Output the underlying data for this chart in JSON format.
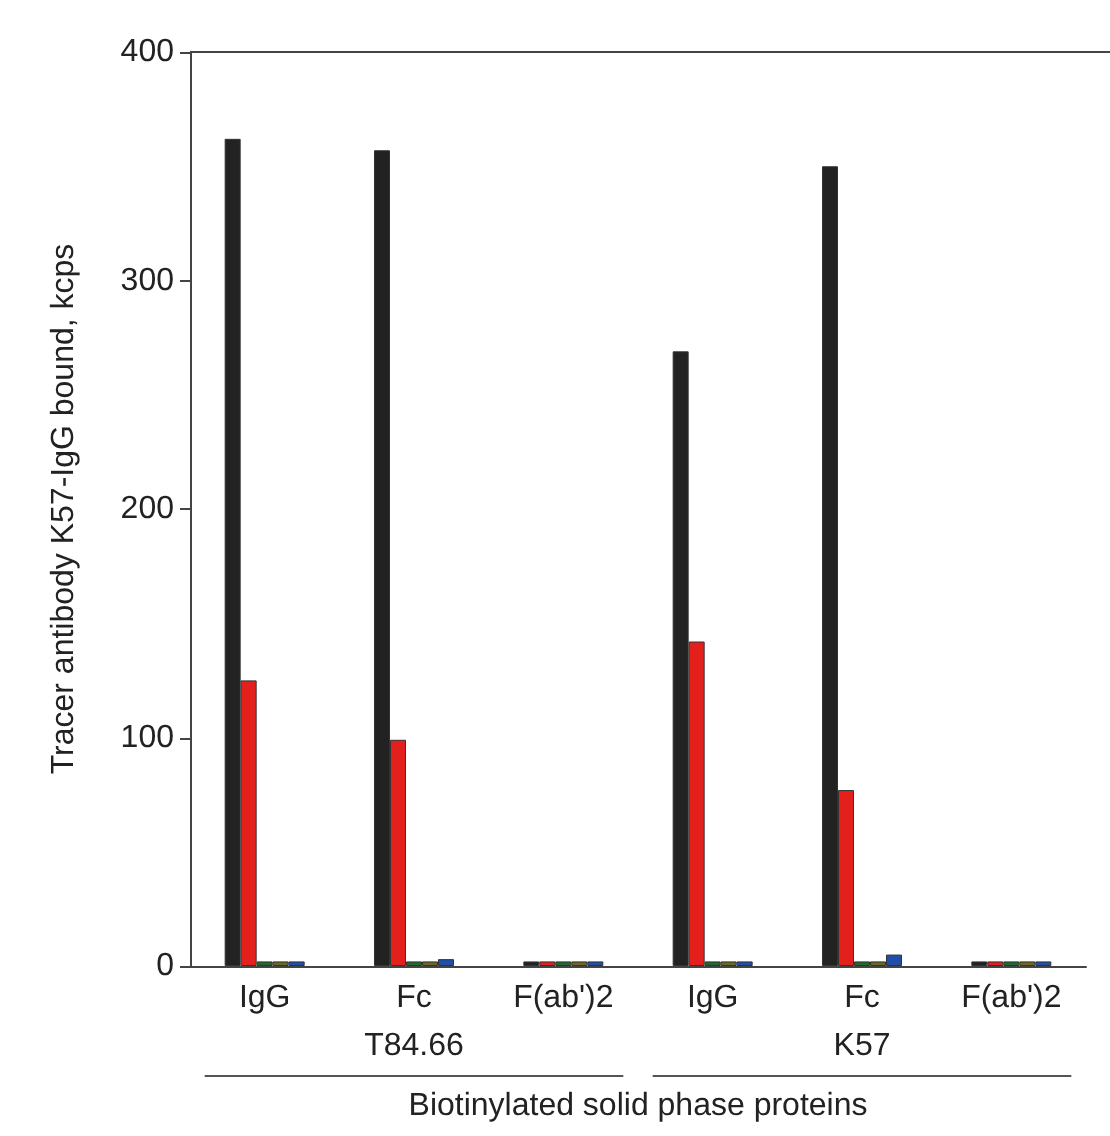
{
  "chart_data": {
    "type": "bar",
    "categories": [
      "IgG",
      "Fc",
      "F(ab')2",
      "IgG",
      "Fc",
      "F(ab')2"
    ],
    "series": [
      {
        "color": "#222222",
        "values": [
          362,
          357,
          2,
          269,
          350,
          2
        ]
      },
      {
        "color": "#e3201b",
        "values": [
          125,
          99,
          2,
          142,
          77,
          2
        ]
      },
      {
        "color": "#1f6b2e",
        "values": [
          2,
          2,
          2,
          2,
          2,
          2
        ]
      },
      {
        "color": "#6b6b1f",
        "values": [
          2,
          2,
          2,
          2,
          2,
          2
        ]
      },
      {
        "color": "#1f4fa8",
        "values": [
          2,
          3,
          2,
          2,
          5,
          2
        ]
      }
    ],
    "ylim": [
      0,
      400
    ],
    "yticks": [
      0,
      100,
      200,
      300,
      400
    ],
    "grid": false,
    "xlabel": "Biotinylated solid phase proteins",
    "ylabel": "Tracer antibody K57-IgG bound, kcps",
    "annotations": [
      "T84.66",
      "K57"
    ]
  }
}
